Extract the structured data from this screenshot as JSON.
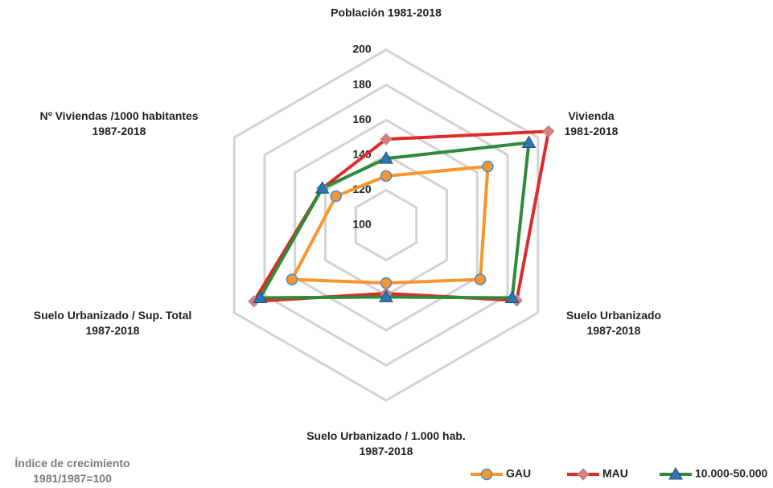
{
  "chart_data": {
    "type": "radar",
    "categories": [
      "Población 1981-2018",
      "Vivienda\n1981-2018",
      "Suelo Urbanizado\n1987-2018",
      "Suelo Urbanizado / 1.000 hab.\n1987-2018",
      "Suelo Urbanizado / Sup. Total\n1987-2018",
      "Nº Viviendas /1000 habitantes\n1987-2018"
    ],
    "series": [
      {
        "name": "GAU",
        "color": "#f7962f",
        "marker": "circle",
        "marker_color": "#f7962f",
        "values": [
          128,
          167,
          162,
          133,
          162,
          133
        ]
      },
      {
        "name": "MAU",
        "color": "#e02a2a",
        "marker": "diamond",
        "marker_color": "#e07a7a",
        "values": [
          149,
          207,
          186,
          139,
          187,
          142
        ]
      },
      {
        "name": "10.000-50.000",
        "color": "#2e8b3a",
        "marker": "triangle",
        "marker_color": "#2e75b6",
        "values": [
          138,
          194,
          183,
          141,
          183,
          142
        ]
      }
    ],
    "ylim": [
      100,
      200
    ],
    "yticks": [
      100,
      120,
      140,
      160,
      180,
      200
    ],
    "grid": true,
    "annotation": "Índice de crecimiento\n1981/1987=100",
    "legend": "bottom-right"
  }
}
